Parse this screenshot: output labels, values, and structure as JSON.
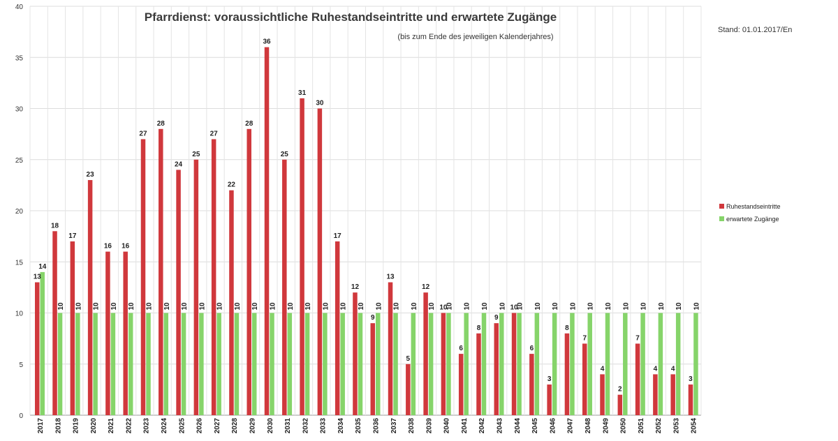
{
  "chart_data": {
    "type": "bar",
    "title": "Pfarrdienst: voraussichtliche Ruhestandseintritte und erwartete Zugänge",
    "subtitle": "(bis zum Ende des jeweiligen Kalenderjahres)",
    "stand": "Stand: 01.01.2017/En",
    "ylim": [
      0,
      40
    ],
    "yticks": [
      0,
      5,
      10,
      15,
      20,
      25,
      30,
      35,
      40
    ],
    "grid": true,
    "legend_position": "right",
    "categories": [
      "2017",
      "2018",
      "2019",
      "2020",
      "2021",
      "2022",
      "2023",
      "2024",
      "2025",
      "2026",
      "2027",
      "2028",
      "2029",
      "2030",
      "2031",
      "2032",
      "2033",
      "2034",
      "2035",
      "2036",
      "2037",
      "2038",
      "2039",
      "2040",
      "2041",
      "2042",
      "2043",
      "2044",
      "2045",
      "2046",
      "2047",
      "2048",
      "2049",
      "2050",
      "2051",
      "2052",
      "2053",
      "2054"
    ],
    "series": [
      {
        "name": "Ruhestandseintritte",
        "color": "#d0383c",
        "values": [
          13,
          18,
          17,
          23,
          16,
          16,
          27,
          28,
          24,
          25,
          27,
          22,
          28,
          36,
          25,
          31,
          30,
          17,
          12,
          9,
          13,
          5,
          12,
          10,
          6,
          8,
          9,
          10,
          6,
          3,
          8,
          7,
          4,
          2,
          7,
          4,
          4,
          3
        ]
      },
      {
        "name": "erwartete Zugänge",
        "color": "#86d46a",
        "values": [
          14,
          10,
          10,
          10,
          10,
          10,
          10,
          10,
          10,
          10,
          10,
          10,
          10,
          10,
          10,
          10,
          10,
          10,
          10,
          10,
          10,
          10,
          10,
          10,
          10,
          10,
          10,
          10,
          10,
          10,
          10,
          10,
          10,
          10,
          10,
          10,
          10,
          10
        ]
      }
    ]
  }
}
